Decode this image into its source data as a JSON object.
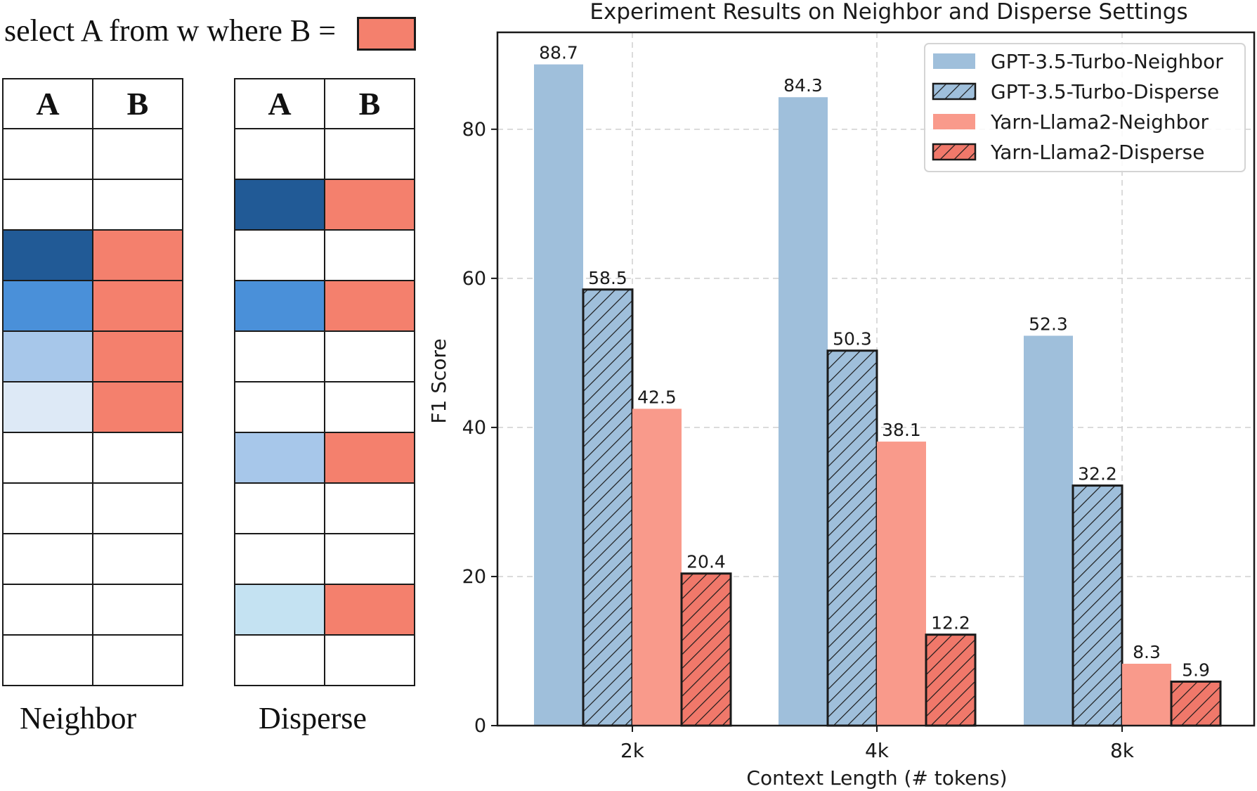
{
  "query": {
    "text": "select A from w where B =",
    "swatch_color": "#f4806d"
  },
  "tables": [
    {
      "caption": "Neighbor",
      "headers": [
        "A",
        "B"
      ],
      "rows": [
        [
          "#ffffff",
          "#ffffff"
        ],
        [
          "#ffffff",
          "#ffffff"
        ],
        [
          "#215a96",
          "#f4806d"
        ],
        [
          "#4a90d9",
          "#f4806d"
        ],
        [
          "#a7c7ea",
          "#f4806d"
        ],
        [
          "#dde9f6",
          "#f4806d"
        ],
        [
          "#ffffff",
          "#ffffff"
        ],
        [
          "#ffffff",
          "#ffffff"
        ],
        [
          "#ffffff",
          "#ffffff"
        ],
        [
          "#ffffff",
          "#ffffff"
        ],
        [
          "#ffffff",
          "#ffffff"
        ]
      ]
    },
    {
      "caption": "Disperse",
      "headers": [
        "A",
        "B"
      ],
      "rows": [
        [
          "#ffffff",
          "#ffffff"
        ],
        [
          "#215a96",
          "#f4806d"
        ],
        [
          "#ffffff",
          "#ffffff"
        ],
        [
          "#4a90d9",
          "#f4806d"
        ],
        [
          "#ffffff",
          "#ffffff"
        ],
        [
          "#ffffff",
          "#ffffff"
        ],
        [
          "#a7c7ea",
          "#f4806d"
        ],
        [
          "#ffffff",
          "#ffffff"
        ],
        [
          "#ffffff",
          "#ffffff"
        ],
        [
          "#c4e2f2",
          "#f4806d"
        ],
        [
          "#ffffff",
          "#ffffff"
        ]
      ]
    }
  ],
  "chart_data": {
    "type": "bar",
    "title": "Experiment Results on Neighbor and Disperse Settings",
    "xlabel": "Context Length (# tokens)",
    "ylabel": "F1 Score",
    "categories": [
      "2k",
      "4k",
      "8k"
    ],
    "ylim": [
      0,
      93
    ],
    "yticks": [
      0,
      20,
      40,
      60,
      80
    ],
    "grid": true,
    "legend_position": "top-right",
    "series": [
      {
        "name": "GPT-3.5-Turbo-Neighbor",
        "values": [
          88.7,
          84.3,
          52.3
        ],
        "color": "#9fbfdb",
        "hatch": false
      },
      {
        "name": "GPT-3.5-Turbo-Disperse",
        "values": [
          58.5,
          50.3,
          32.2
        ],
        "color": "#9fbfdb",
        "hatch": true
      },
      {
        "name": "Yarn-Llama2-Neighbor",
        "values": [
          42.5,
          38.1,
          8.3
        ],
        "color": "#f99a8b",
        "hatch": false
      },
      {
        "name": "Yarn-Llama2-Disperse",
        "values": [
          20.4,
          12.2,
          5.9
        ],
        "color": "#f0786a",
        "hatch": true
      }
    ]
  }
}
